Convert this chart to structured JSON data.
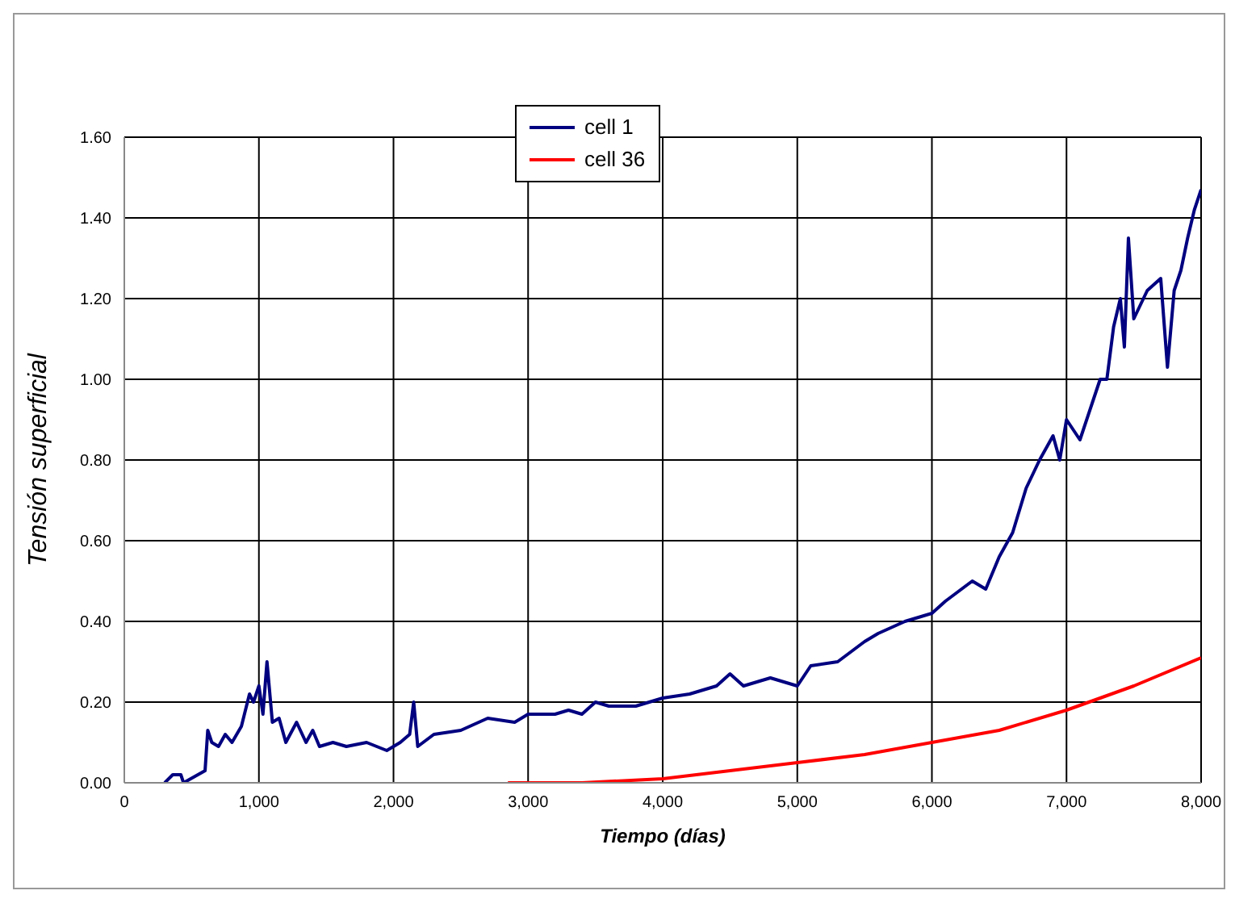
{
  "chart_data": {
    "type": "line",
    "xlabel": "Tiempo (días)",
    "ylabel": "Tensión superficial",
    "xlim": [
      0,
      8000
    ],
    "ylim": [
      0,
      1.6
    ],
    "xticks": [
      {
        "value": 0,
        "label": "0"
      },
      {
        "value": 1000,
        "label": "1,000"
      },
      {
        "value": 2000,
        "label": "2,000"
      },
      {
        "value": 3000,
        "label": "3,000"
      },
      {
        "value": 4000,
        "label": "4,000"
      },
      {
        "value": 5000,
        "label": "5,000"
      },
      {
        "value": 6000,
        "label": "6,000"
      },
      {
        "value": 7000,
        "label": "7,000"
      },
      {
        "value": 8000,
        "label": "8,000"
      }
    ],
    "yticks": [
      {
        "value": 0,
        "label": "0.00"
      },
      {
        "value": 0.2,
        "label": "0.20"
      },
      {
        "value": 0.4,
        "label": "0.40"
      },
      {
        "value": 0.6,
        "label": "0.60"
      },
      {
        "value": 0.8,
        "label": "0.80"
      },
      {
        "value": 1,
        "label": "1.00"
      },
      {
        "value": 1.2,
        "label": "1.20"
      },
      {
        "value": 1.4,
        "label": "1.40"
      },
      {
        "value": 1.6,
        "label": "1.60"
      }
    ],
    "grid": true,
    "legend": "top",
    "marker": "none",
    "line_style": "solid",
    "series": [
      {
        "name": "cell 1",
        "color": "#000080",
        "x": [
          300,
          360,
          420,
          440,
          600,
          620,
          650,
          700,
          750,
          800,
          870,
          930,
          960,
          1000,
          1030,
          1060,
          1100,
          1150,
          1200,
          1280,
          1350,
          1400,
          1450,
          1550,
          1650,
          1800,
          1950,
          2050,
          2120,
          2150,
          2180,
          2300,
          2500,
          2700,
          2900,
          3000,
          3200,
          3300,
          3400,
          3500,
          3600,
          3800,
          4000,
          4200,
          4400,
          4500,
          4600,
          4800,
          5000,
          5100,
          5300,
          5500,
          5600,
          5800,
          5900,
          6000,
          6100,
          6300,
          6400,
          6500,
          6600,
          6700,
          6800,
          6900,
          6950,
          7000,
          7100,
          7200,
          7250,
          7300,
          7350,
          7400,
          7430,
          7460,
          7500,
          7600,
          7700,
          7750,
          7800,
          7850,
          7900,
          7950,
          8000
        ],
        "values": [
          0,
          0.02,
          0.02,
          0,
          0.03,
          0.13,
          0.1,
          0.09,
          0.12,
          0.1,
          0.14,
          0.22,
          0.2,
          0.24,
          0.17,
          0.3,
          0.15,
          0.16,
          0.1,
          0.15,
          0.1,
          0.13,
          0.09,
          0.1,
          0.09,
          0.1,
          0.08,
          0.1,
          0.12,
          0.2,
          0.09,
          0.12,
          0.13,
          0.16,
          0.15,
          0.17,
          0.17,
          0.18,
          0.17,
          0.2,
          0.19,
          0.19,
          0.21,
          0.22,
          0.24,
          0.27,
          0.24,
          0.26,
          0.24,
          0.29,
          0.3,
          0.35,
          0.37,
          0.4,
          0.41,
          0.42,
          0.45,
          0.5,
          0.48,
          0.56,
          0.62,
          0.73,
          0.8,
          0.86,
          0.8,
          0.9,
          0.85,
          0.95,
          1,
          1,
          1.13,
          1.2,
          1.08,
          1.35,
          1.15,
          1.22,
          1.25,
          1.03,
          1.22,
          1.27,
          1.35,
          1.42,
          1.47
        ]
      },
      {
        "name": "cell 36",
        "color": "#ff0000",
        "x": [
          2850,
          3400,
          4000,
          4500,
          5000,
          5500,
          6000,
          6500,
          7000,
          7500,
          8000
        ],
        "values": [
          0,
          0,
          0.01,
          0.03,
          0.05,
          0.07,
          0.1,
          0.13,
          0.18,
          0.24,
          0.31
        ]
      }
    ]
  }
}
